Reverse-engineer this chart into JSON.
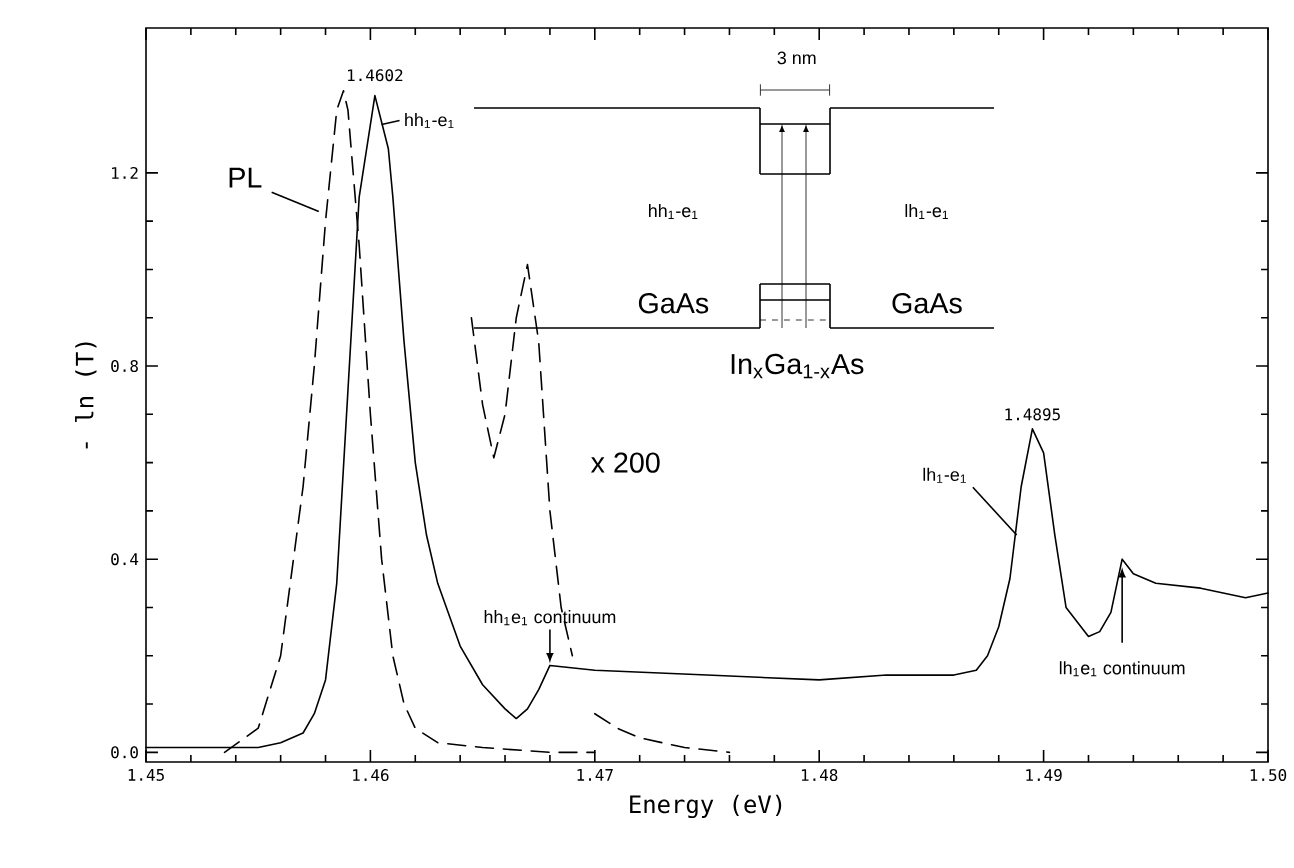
{
  "chart_data": {
    "type": "line",
    "xlabel": "Energy (eV)",
    "ylabel": "- ln (T)",
    "xlim": [
      1.45,
      1.5
    ],
    "ylim": [
      -0.02,
      1.5
    ],
    "xticks": [
      1.45,
      1.46,
      1.47,
      1.48,
      1.49,
      {
        "value": 1.5,
        "label": "1.50"
      }
    ],
    "yticks": [
      {
        "value": 0,
        "label": "0.0"
      },
      {
        "value": 0.4,
        "label": "0.4"
      },
      {
        "value": 0.8,
        "label": "0.8"
      },
      {
        "value": 1.2,
        "label": "1.2"
      }
    ],
    "grid": false,
    "marker": "none",
    "series": [
      {
        "color": "#000000",
        "line_style": "solid",
        "x": [
          1.45,
          1.452,
          1.454,
          1.455,
          1.456,
          1.457,
          1.4575,
          1.458,
          1.4585,
          1.459,
          1.4595,
          1.4602,
          1.4608,
          1.461,
          1.4615,
          1.462,
          1.4625,
          1.463,
          1.464,
          1.465,
          1.466,
          1.4665,
          1.467,
          1.4675,
          1.468,
          1.47,
          1.475,
          1.48,
          1.483,
          1.486,
          1.487,
          1.4875,
          1.488,
          1.4885,
          1.489,
          1.4895,
          1.49,
          1.4905,
          1.491,
          1.4915,
          1.492,
          1.4925,
          1.493,
          1.4935,
          1.494,
          1.495,
          1.497,
          1.499,
          1.5
        ],
        "values": [
          0.01,
          0.01,
          0.01,
          0.01,
          0.02,
          0.04,
          0.08,
          0.15,
          0.35,
          0.75,
          1.15,
          1.36,
          1.25,
          1.15,
          0.85,
          0.6,
          0.45,
          0.35,
          0.22,
          0.14,
          0.09,
          0.07,
          0.09,
          0.13,
          0.18,
          0.17,
          0.16,
          0.15,
          0.16,
          0.16,
          0.17,
          0.2,
          0.26,
          0.36,
          0.55,
          0.67,
          0.62,
          0.45,
          0.3,
          0.27,
          0.24,
          0.25,
          0.29,
          0.4,
          0.37,
          0.35,
          0.34,
          0.32,
          0.33
        ]
      },
      {
        "name": "PL",
        "color": "#000000",
        "line_style": "dashed",
        "x": [
          1.4535,
          1.455,
          1.456,
          1.457,
          1.4575,
          1.458,
          1.4585,
          1.4588,
          1.459,
          1.4595,
          1.46,
          1.4605,
          1.461,
          1.4615,
          1.462,
          1.463,
          1.465,
          1.468,
          1.47
        ],
        "values": [
          0.0,
          0.05,
          0.2,
          0.55,
          0.8,
          1.1,
          1.33,
          1.37,
          1.33,
          1.05,
          0.7,
          0.4,
          0.2,
          0.1,
          0.05,
          0.02,
          0.01,
          0.0,
          0.0
        ]
      },
      {
        "name": "x 200",
        "color": "#000000",
        "line_style": "dashed",
        "x": [
          1.4645,
          1.465,
          1.4655,
          1.466,
          1.4665,
          1.467,
          1.4675,
          1.468,
          1.4685,
          1.469,
          1.4695,
          1.47,
          1.471,
          1.472,
          1.474,
          1.476
        ],
        "values": [
          0.9,
          0.72,
          0.61,
          0.7,
          0.9,
          1.01,
          0.85,
          0.5,
          0.3,
          0.2,
          null,
          0.08,
          0.05,
          0.03,
          0.01,
          0.0
        ]
      }
    ],
    "annotations": [
      {
        "text": "1.4602",
        "x": 1.4602,
        "y": 1.36
      },
      {
        "text": "hh$_{1}$-e$_{1}$",
        "x": 1.4605,
        "y": 1.3
      },
      {
        "text": "1.4895",
        "x": 1.4895,
        "y": 0.67
      },
      {
        "text": "lh$_{1}$-e$_{1}$",
        "x": 1.4888,
        "y": 0.45
      },
      {
        "text": "hh$_{1}$e$_{1}$ continuum",
        "x": 1.468,
        "y": 0.18
      },
      {
        "text": "lh$_{1}$e$_{1}$ continuum",
        "x": 1.4935,
        "y": 0.4
      },
      "3 nm",
      "hh$_{1}$-e$_{1}$",
      "lh$_{1}$-e$_{1}$",
      "GaAs",
      "GaAs",
      "In$_{x}$Ga$_{1-x}$As"
    ]
  }
}
